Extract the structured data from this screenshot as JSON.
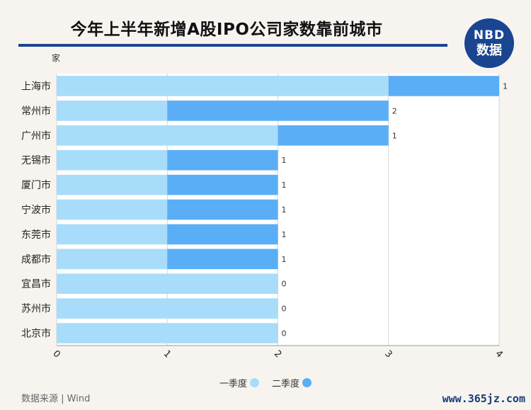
{
  "header": {
    "title": "今年上半年新增A股IPO公司家数靠前城市",
    "logo_top": "NBD",
    "logo_bottom": "数据"
  },
  "footer": {
    "source": "数据来源 | Wind",
    "site": "www.365jz.com"
  },
  "colors": {
    "q1": "#a8dcfb",
    "q2": "#5aaef5",
    "brand": "#1a4590"
  },
  "chart_data": {
    "type": "bar",
    "orientation": "horizontal",
    "stacked": true,
    "title": "今年上半年新增A股IPO公司家数靠前城市",
    "ylabel": "家",
    "categories": [
      "上海市",
      "常州市",
      "广州市",
      "无锡市",
      "厦门市",
      "宁波市",
      "东莞市",
      "成都市",
      "宜昌市",
      "苏州市",
      "北京市"
    ],
    "series": [
      {
        "name": "一季度",
        "values": [
          3,
          1,
          2,
          1,
          1,
          1,
          1,
          1,
          2,
          2,
          2
        ]
      },
      {
        "name": "二季度",
        "values": [
          1,
          2,
          1,
          1,
          1,
          1,
          1,
          1,
          0,
          0,
          0
        ]
      }
    ],
    "xlim": [
      0,
      4
    ],
    "xticks": [
      "0",
      "1",
      "2",
      "3",
      "4"
    ],
    "grid": true,
    "legend": "bottom"
  }
}
